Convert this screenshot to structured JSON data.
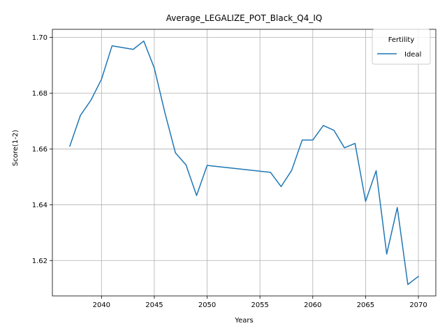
{
  "chart_data": {
    "type": "line",
    "title": "Average_LEGALIZE_POT_Black_Q4_IQ",
    "xlabel": "Years",
    "ylabel": "Score(1-2)",
    "xlim": [
      2035.35,
      2071.65
    ],
    "ylim": [
      1.6073,
      1.7029
    ],
    "xticks": [
      2040,
      2045,
      2050,
      2055,
      2060,
      2065,
      2070
    ],
    "yticks": [
      1.62,
      1.64,
      1.66,
      1.68,
      1.7
    ],
    "ytick_labels": [
      "1.62",
      "1.64",
      "1.66",
      "1.68",
      "1.70"
    ],
    "grid": true,
    "legend": {
      "title": "Fertility",
      "placement": "top-right"
    },
    "series": [
      {
        "name": "Ideal",
        "color": "#1f77b4",
        "x": [
          2037,
          2038,
          2039,
          2040,
          2041,
          2043,
          2044,
          2045,
          2046,
          2047,
          2048,
          2049,
          2050,
          2056,
          2057,
          2058,
          2059,
          2060,
          2061,
          2062,
          2063,
          2064,
          2065,
          2066,
          2067,
          2068,
          2069,
          2070
        ],
        "y": [
          1.661,
          1.672,
          1.6775,
          1.685,
          1.697,
          1.6957,
          1.6987,
          1.689,
          1.673,
          1.6586,
          1.6543,
          1.6433,
          1.6541,
          1.6516,
          1.6465,
          1.6523,
          1.6632,
          1.6632,
          1.6684,
          1.6667,
          1.6604,
          1.662,
          1.6412,
          1.6522,
          1.6223,
          1.639,
          1.6114,
          1.6143
        ]
      }
    ]
  }
}
